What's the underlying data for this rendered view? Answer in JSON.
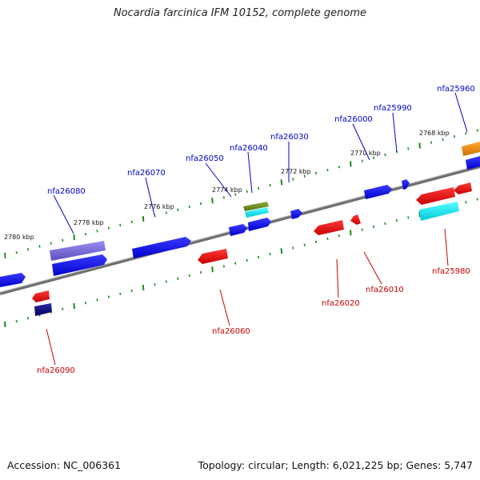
{
  "title": "Nocardia farcinica IFM 10152, complete genome",
  "footer": {
    "accession": "Accession: NC_006361",
    "summary": "Topology: circular; Length: 6,021,225 bp; Genes: 5,747"
  },
  "colors": {
    "backbone": "#7a7a7a",
    "tick": "#1f8a1f",
    "forward_label": "#0000cc",
    "reverse_label": "#cc0000"
  },
  "scale_labels": [
    "2780 kbp",
    "2778 kbp",
    "2776 kbp",
    "2774 kbp",
    "2772 kbp",
    "2770 kbp",
    "2768 kbp"
  ],
  "forward_genes": [
    {
      "label": "nfa26080",
      "color": "#6b5fcf"
    },
    {
      "label": "nfa26070",
      "color": "#0000ee"
    },
    {
      "label": "nfa26050",
      "color": "#0000ee"
    },
    {
      "label": "nfa26040",
      "color": "#6b8e23"
    },
    {
      "label": "nfa26030",
      "color": "#0000ee"
    },
    {
      "label": "nfa26000",
      "color": "#0000ee"
    },
    {
      "label": "nfa25990",
      "color": "#0000ee"
    },
    {
      "label": "nfa25960",
      "color": "#ee8800"
    }
  ],
  "reverse_genes": [
    {
      "label": "nfa26090",
      "color": "#ee0000"
    },
    {
      "label": "nfa26060",
      "color": "#ee0000"
    },
    {
      "label": "nfa26020",
      "color": "#ee0000"
    },
    {
      "label": "nfa26010",
      "color": "#ee0000"
    },
    {
      "label": "nfa25980",
      "color": "#ee0000"
    }
  ]
}
